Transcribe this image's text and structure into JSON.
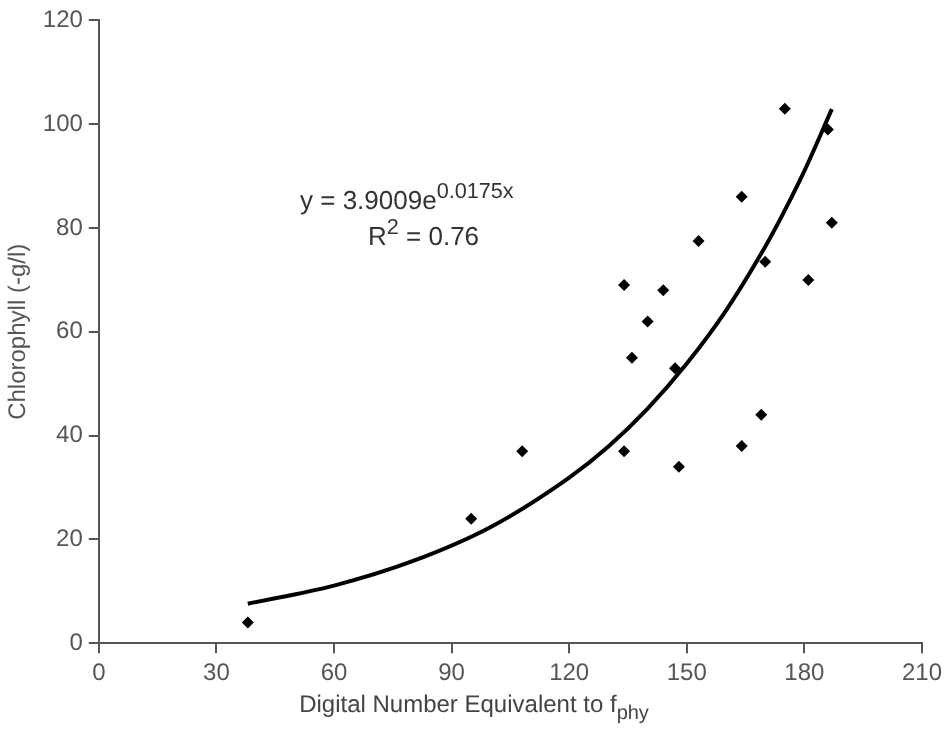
{
  "chart_data": {
    "type": "scatter",
    "xlabel": "Digital Number Equivalent to f$_{phy}$",
    "ylabel": "Chlorophyll (-g/l)",
    "annotations": [
      "y = 3.9009e$^{0.0175x}$",
      "R$^{2}$ = 0.76"
    ],
    "xlim": [
      0,
      210
    ],
    "xticks": [
      0,
      30,
      60,
      90,
      120,
      150,
      180,
      210
    ],
    "ylim": [
      0,
      120
    ],
    "yticks": [
      0,
      20,
      40,
      60,
      80,
      100,
      120
    ],
    "marker": "diamond",
    "grid": false,
    "legend": false,
    "series": [
      {
        "color": "#000000",
        "x": [
          38,
          95,
          108,
          134,
          134,
          136,
          140,
          144,
          147,
          148,
          153,
          164,
          164,
          169,
          170,
          175,
          181,
          186,
          187
        ],
        "values": [
          4,
          24,
          37,
          69,
          37,
          55,
          62,
          68,
          53,
          34,
          77.5,
          86,
          38,
          44,
          73.5,
          103,
          70,
          99,
          81
        ]
      },
      {
        "type": "line",
        "marker": "none",
        "color": "#000000",
        "x": [
          38,
          60,
          80,
          100,
          120,
          130,
          140,
          150,
          160,
          170,
          175,
          180,
          187
        ],
        "values": [
          7.6,
          11.1,
          15.8,
          22.4,
          31.9,
          37.9,
          45.2,
          53.9,
          64.1,
          76.4,
          83.4,
          91.0,
          102.9
        ]
      }
    ]
  }
}
